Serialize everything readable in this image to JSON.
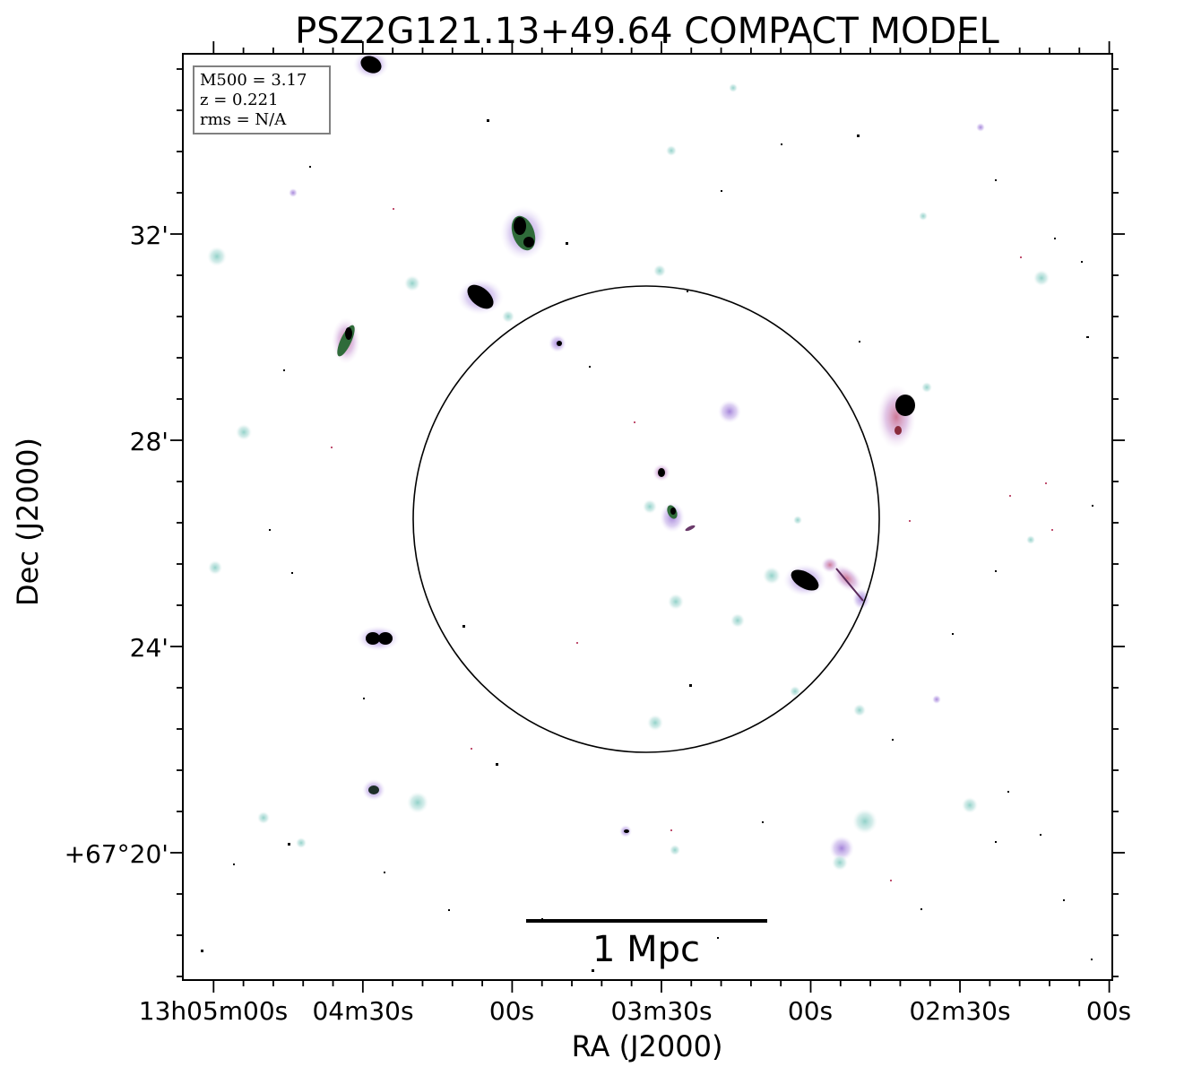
{
  "figure": {
    "title": "PSZ2G121.13+49.64 COMPACT MODEL",
    "xlabel": "RA (J2000)",
    "ylabel": "Dec (J2000)",
    "x_ticks": [
      "13h05m00s",
      "04m30s",
      "00s",
      "03m30s",
      "00s",
      "02m30s",
      "00s"
    ],
    "y_ticks": [
      "32'",
      "28'",
      "24'",
      "+67°20'"
    ],
    "info_box": {
      "line1": "M500 = 3.17",
      "line2": "z = 0.221",
      "line3": "rms = N/A"
    },
    "scale_bar_label": "1 Mpc"
  },
  "colors": {
    "halo_teal": "#a9d8d3",
    "halo_violet": "#b9a3e3",
    "core_green": "#2f6b3a",
    "core_black": "#000000",
    "frame": "#000000"
  }
}
